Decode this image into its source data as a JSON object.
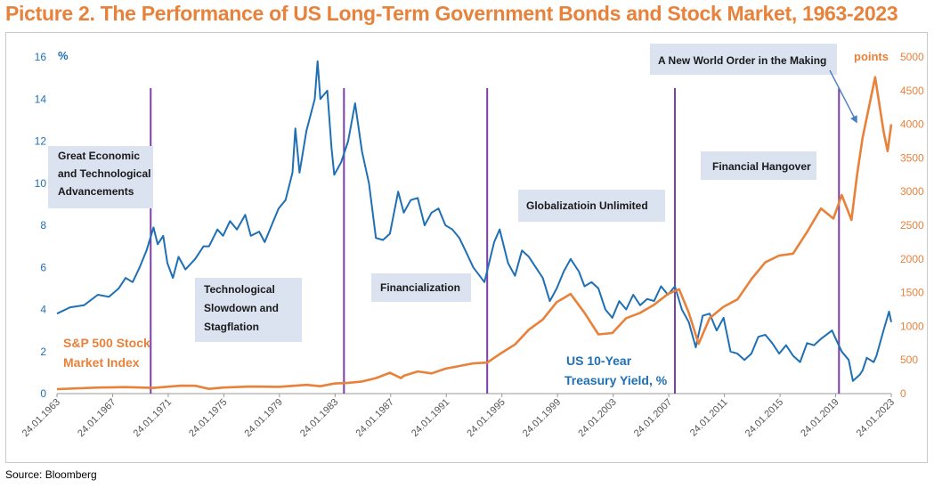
{
  "title": "Picture 2. The Performance of US Long-Term Government Bonds and Stock Market, 1963-2023",
  "source": "Source: Bloomberg",
  "colors": {
    "yield": "#1f6fb4",
    "sp500": "#e8813a",
    "divider": "#7b3fa6",
    "box": "#dbe3f1",
    "title": "#e8813a"
  },
  "chart_data": {
    "type": "line",
    "x_ticks": [
      "24.01.1963",
      "24.01.1967",
      "24.01.1971",
      "24.01.1975",
      "24.01.1979",
      "24.01.1983",
      "24.01.1987",
      "24.01.1991",
      "24.01.1995",
      "24.01.1999",
      "24.01.2003",
      "24.01.2007",
      "24.01.2011",
      "24.01.2015",
      "24.01.2019",
      "24.01.2023"
    ],
    "xlim": [
      1963.06,
      2023.06
    ],
    "y_left": {
      "unit": "%",
      "ticks": [
        0,
        2,
        4,
        6,
        8,
        10,
        12,
        14,
        16
      ],
      "lim": [
        0,
        16
      ]
    },
    "y_right": {
      "unit": "points",
      "ticks": [
        0,
        500,
        1000,
        1500,
        2000,
        2500,
        3000,
        3500,
        4000,
        4500,
        5000
      ],
      "lim": [
        0,
        5000
      ]
    },
    "dividers": [
      1969.8,
      1983.7,
      1994.0,
      2007.5,
      2019.3
    ],
    "series": [
      {
        "name": "US 10-Year Treasury Yield, %",
        "axis": "left",
        "points": [
          [
            1963.06,
            3.8
          ],
          [
            1964,
            4.1
          ],
          [
            1965,
            4.2
          ],
          [
            1966,
            4.7
          ],
          [
            1966.8,
            4.6
          ],
          [
            1967.5,
            5.0
          ],
          [
            1968,
            5.5
          ],
          [
            1968.5,
            5.3
          ],
          [
            1969,
            6.0
          ],
          [
            1969.5,
            6.8
          ],
          [
            1970,
            7.9
          ],
          [
            1970.3,
            7.1
          ],
          [
            1970.7,
            7.5
          ],
          [
            1971,
            6.2
          ],
          [
            1971.4,
            5.5
          ],
          [
            1971.8,
            6.5
          ],
          [
            1972.3,
            5.9
          ],
          [
            1973,
            6.4
          ],
          [
            1973.6,
            7.0
          ],
          [
            1974,
            7.0
          ],
          [
            1974.6,
            7.8
          ],
          [
            1975,
            7.5
          ],
          [
            1975.5,
            8.2
          ],
          [
            1976,
            7.8
          ],
          [
            1976.6,
            8.5
          ],
          [
            1977,
            7.5
          ],
          [
            1977.6,
            7.7
          ],
          [
            1978,
            7.2
          ],
          [
            1978.5,
            8.0
          ],
          [
            1979,
            8.8
          ],
          [
            1979.5,
            9.2
          ],
          [
            1980,
            10.5
          ],
          [
            1980.2,
            12.6
          ],
          [
            1980.5,
            10.5
          ],
          [
            1981,
            12.5
          ],
          [
            1981.6,
            14.0
          ],
          [
            1981.8,
            15.8
          ],
          [
            1982,
            14.0
          ],
          [
            1982.5,
            14.4
          ],
          [
            1982.8,
            11.7
          ],
          [
            1983,
            10.4
          ],
          [
            1983.5,
            11.0
          ],
          [
            1984,
            12.0
          ],
          [
            1984.5,
            13.8
          ],
          [
            1985,
            11.5
          ],
          [
            1985.5,
            10.0
          ],
          [
            1986,
            7.4
          ],
          [
            1986.5,
            7.3
          ],
          [
            1987,
            7.6
          ],
          [
            1987.6,
            9.6
          ],
          [
            1988,
            8.6
          ],
          [
            1988.5,
            9.2
          ],
          [
            1989,
            9.3
          ],
          [
            1989.5,
            8.0
          ],
          [
            1990,
            8.6
          ],
          [
            1990.5,
            8.8
          ],
          [
            1991,
            8.0
          ],
          [
            1991.5,
            7.8
          ],
          [
            1992,
            7.4
          ],
          [
            1992.5,
            6.7
          ],
          [
            1993,
            6.0
          ],
          [
            1993.8,
            5.3
          ],
          [
            1994.5,
            7.2
          ],
          [
            1994.9,
            7.8
          ],
          [
            1995.5,
            6.2
          ],
          [
            1996,
            5.6
          ],
          [
            1996.5,
            6.8
          ],
          [
            1997,
            6.5
          ],
          [
            1997.5,
            6.0
          ],
          [
            1998,
            5.5
          ],
          [
            1998.5,
            4.4
          ],
          [
            1999,
            5.0
          ],
          [
            1999.5,
            5.8
          ],
          [
            2000,
            6.4
          ],
          [
            2000.6,
            5.8
          ],
          [
            2001,
            5.1
          ],
          [
            2001.5,
            5.3
          ],
          [
            2002,
            5.0
          ],
          [
            2002.5,
            4.0
          ],
          [
            2003,
            3.6
          ],
          [
            2003.5,
            4.4
          ],
          [
            2004,
            4.0
          ],
          [
            2004.5,
            4.7
          ],
          [
            2005,
            4.2
          ],
          [
            2005.5,
            4.5
          ],
          [
            2006,
            4.4
          ],
          [
            2006.5,
            5.1
          ],
          [
            2007,
            4.7
          ],
          [
            2007.5,
            5.1
          ],
          [
            2008,
            4.0
          ],
          [
            2008.5,
            3.4
          ],
          [
            2009,
            2.2
          ],
          [
            2009.5,
            3.7
          ],
          [
            2010,
            3.8
          ],
          [
            2010.5,
            3.0
          ],
          [
            2011,
            3.6
          ],
          [
            2011.5,
            2.0
          ],
          [
            2012,
            1.9
          ],
          [
            2012.5,
            1.6
          ],
          [
            2013,
            1.9
          ],
          [
            2013.5,
            2.7
          ],
          [
            2014,
            2.8
          ],
          [
            2014.5,
            2.4
          ],
          [
            2015,
            1.9
          ],
          [
            2015.5,
            2.3
          ],
          [
            2016,
            1.8
          ],
          [
            2016.5,
            1.5
          ],
          [
            2017,
            2.4
          ],
          [
            2017.5,
            2.3
          ],
          [
            2018,
            2.6
          ],
          [
            2018.8,
            3.0
          ],
          [
            2019,
            2.7
          ],
          [
            2019.5,
            2.0
          ],
          [
            2020,
            1.6
          ],
          [
            2020.3,
            0.6
          ],
          [
            2020.8,
            0.9
          ],
          [
            2021,
            1.1
          ],
          [
            2021.3,
            1.7
          ],
          [
            2021.8,
            1.5
          ],
          [
            2022,
            1.8
          ],
          [
            2022.5,
            3.0
          ],
          [
            2022.9,
            3.9
          ],
          [
            2023.06,
            3.4
          ]
        ]
      },
      {
        "name": "S&P 500 Stock Market Index",
        "axis": "right",
        "points": [
          [
            1963.06,
            66
          ],
          [
            1966,
            90
          ],
          [
            1968,
            96
          ],
          [
            1970,
            85
          ],
          [
            1972,
            118
          ],
          [
            1973,
            116
          ],
          [
            1974,
            70
          ],
          [
            1975,
            90
          ],
          [
            1977,
            105
          ],
          [
            1979,
            100
          ],
          [
            1980,
            115
          ],
          [
            1981,
            130
          ],
          [
            1982,
            110
          ],
          [
            1983,
            150
          ],
          [
            1984,
            160
          ],
          [
            1985,
            180
          ],
          [
            1986,
            230
          ],
          [
            1987,
            310
          ],
          [
            1987.8,
            230
          ],
          [
            1988,
            265
          ],
          [
            1989,
            330
          ],
          [
            1990,
            300
          ],
          [
            1991,
            370
          ],
          [
            1992,
            410
          ],
          [
            1993,
            450
          ],
          [
            1994,
            460
          ],
          [
            1995,
            600
          ],
          [
            1996,
            730
          ],
          [
            1997,
            950
          ],
          [
            1998,
            1100
          ],
          [
            1999,
            1360
          ],
          [
            2000,
            1480
          ],
          [
            2001,
            1200
          ],
          [
            2002,
            880
          ],
          [
            2003,
            900
          ],
          [
            2004,
            1120
          ],
          [
            2005,
            1200
          ],
          [
            2006,
            1320
          ],
          [
            2007,
            1480
          ],
          [
            2007.8,
            1550
          ],
          [
            2008.5,
            1200
          ],
          [
            2009.2,
            740
          ],
          [
            2010,
            1120
          ],
          [
            2011,
            1290
          ],
          [
            2012,
            1400
          ],
          [
            2013,
            1700
          ],
          [
            2014,
            1950
          ],
          [
            2015,
            2050
          ],
          [
            2016,
            2080
          ],
          [
            2017,
            2400
          ],
          [
            2018,
            2750
          ],
          [
            2018.9,
            2600
          ],
          [
            2019.5,
            2950
          ],
          [
            2020.2,
            2580
          ],
          [
            2020.6,
            3250
          ],
          [
            2021,
            3800
          ],
          [
            2021.9,
            4700
          ],
          [
            2022.5,
            3900
          ],
          [
            2022.8,
            3600
          ],
          [
            2023.06,
            4000
          ]
        ]
      }
    ],
    "labels": {
      "y_left_unit": "%",
      "y_right_unit": "points",
      "sp500": [
        "S&P 500 Stock",
        "Market Index"
      ],
      "yield": [
        "US 10-Year",
        "Treasury Yield, %"
      ]
    },
    "annotations": [
      {
        "lines": [
          "Great Economic",
          "and Technological",
          "Advancements"
        ]
      },
      {
        "lines": [
          "Technological",
          "Slowdown and",
          "Stagflation"
        ]
      },
      {
        "lines": [
          "Financialization"
        ]
      },
      {
        "lines": [
          "Globalizatioin  Unlimited"
        ]
      },
      {
        "lines": [
          "A New World Order in the Making"
        ]
      },
      {
        "lines": [
          "Financial  Hangover"
        ]
      }
    ]
  }
}
